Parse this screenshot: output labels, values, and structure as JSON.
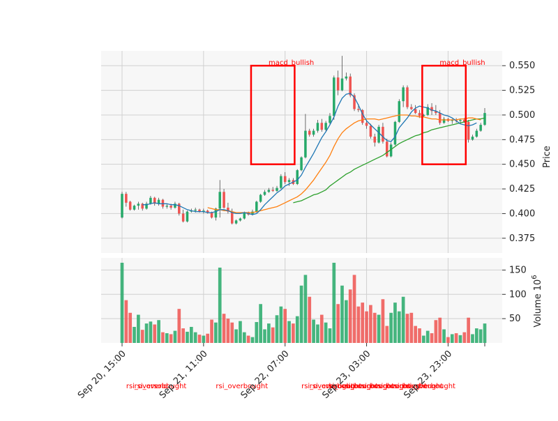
{
  "chart_data": {
    "type": "candlestick",
    "y_axis_label": "Price",
    "volume_axis_label": "Volume",
    "volume_axis_multiplier": "10",
    "volume_axis_multiplier_exp": "6",
    "price_range": [
      0.36,
      0.565
    ],
    "volume_range": [
      0,
      175
    ],
    "price_ticks": [
      "0.375",
      "0.400",
      "0.425",
      "0.450",
      "0.475",
      "0.500",
      "0.525",
      "0.550"
    ],
    "volume_ticks": [
      "50",
      "100",
      "150"
    ],
    "x_tick_labels": [
      "Sep 20, 15:00",
      "Sep 21, 11:00",
      "Sep 22, 07:00",
      "Sep 23, 03:00",
      "Sep 23, 23:00"
    ],
    "grid": true,
    "colors": {
      "up": "#26a969",
      "down": "#ef5350",
      "ma_short": "#1f77b4",
      "ma_mid": "#ff7f0e",
      "ma_long": "#2ca02c",
      "annotation": "#ff0000"
    },
    "candles": [
      {
        "o": 0.396,
        "h": 0.422,
        "l": 0.395,
        "c": 0.42,
        "v": 165
      },
      {
        "o": 0.42,
        "h": 0.422,
        "l": 0.407,
        "c": 0.411,
        "v": 88
      },
      {
        "o": 0.412,
        "h": 0.413,
        "l": 0.403,
        "c": 0.404,
        "v": 62
      },
      {
        "o": 0.404,
        "h": 0.409,
        "l": 0.403,
        "c": 0.408,
        "v": 33
      },
      {
        "o": 0.408,
        "h": 0.412,
        "l": 0.404,
        "c": 0.41,
        "v": 58
      },
      {
        "o": 0.41,
        "h": 0.411,
        "l": 0.403,
        "c": 0.405,
        "v": 27
      },
      {
        "o": 0.405,
        "h": 0.412,
        "l": 0.404,
        "c": 0.41,
        "v": 40
      },
      {
        "o": 0.41,
        "h": 0.418,
        "l": 0.409,
        "c": 0.416,
        "v": 44
      },
      {
        "o": 0.416,
        "h": 0.417,
        "l": 0.408,
        "c": 0.41,
        "v": 38
      },
      {
        "o": 0.41,
        "h": 0.416,
        "l": 0.408,
        "c": 0.414,
        "v": 47
      },
      {
        "o": 0.414,
        "h": 0.415,
        "l": 0.405,
        "c": 0.407,
        "v": 22
      },
      {
        "o": 0.407,
        "h": 0.41,
        "l": 0.405,
        "c": 0.408,
        "v": 20
      },
      {
        "o": 0.408,
        "h": 0.41,
        "l": 0.404,
        "c": 0.406,
        "v": 18
      },
      {
        "o": 0.406,
        "h": 0.412,
        "l": 0.405,
        "c": 0.41,
        "v": 25
      },
      {
        "o": 0.41,
        "h": 0.411,
        "l": 0.398,
        "c": 0.4,
        "v": 70
      },
      {
        "o": 0.4,
        "h": 0.404,
        "l": 0.391,
        "c": 0.392,
        "v": 30
      },
      {
        "o": 0.392,
        "h": 0.403,
        "l": 0.391,
        "c": 0.402,
        "v": 23
      },
      {
        "o": 0.402,
        "h": 0.405,
        "l": 0.401,
        "c": 0.403,
        "v": 33
      },
      {
        "o": 0.403,
        "h": 0.406,
        "l": 0.401,
        "c": 0.404,
        "v": 22
      },
      {
        "o": 0.404,
        "h": 0.405,
        "l": 0.401,
        "c": 0.402,
        "v": 17
      },
      {
        "o": 0.402,
        "h": 0.405,
        "l": 0.4,
        "c": 0.403,
        "v": 15
      },
      {
        "o": 0.403,
        "h": 0.404,
        "l": 0.4,
        "c": 0.401,
        "v": 19
      },
      {
        "o": 0.401,
        "h": 0.402,
        "l": 0.395,
        "c": 0.396,
        "v": 48
      },
      {
        "o": 0.396,
        "h": 0.406,
        "l": 0.393,
        "c": 0.405,
        "v": 42
      },
      {
        "o": 0.405,
        "h": 0.434,
        "l": 0.396,
        "c": 0.422,
        "v": 155
      },
      {
        "o": 0.422,
        "h": 0.425,
        "l": 0.405,
        "c": 0.406,
        "v": 60
      },
      {
        "o": 0.406,
        "h": 0.411,
        "l": 0.4,
        "c": 0.402,
        "v": 50
      },
      {
        "o": 0.402,
        "h": 0.405,
        "l": 0.389,
        "c": 0.39,
        "v": 42
      },
      {
        "o": 0.39,
        "h": 0.394,
        "l": 0.389,
        "c": 0.393,
        "v": 28
      },
      {
        "o": 0.393,
        "h": 0.396,
        "l": 0.392,
        "c": 0.395,
        "v": 45
      },
      {
        "o": 0.395,
        "h": 0.402,
        "l": 0.394,
        "c": 0.401,
        "v": 22
      },
      {
        "o": 0.401,
        "h": 0.402,
        "l": 0.398,
        "c": 0.399,
        "v": 15
      },
      {
        "o": 0.399,
        "h": 0.404,
        "l": 0.398,
        "c": 0.402,
        "v": 12
      },
      {
        "o": 0.402,
        "h": 0.413,
        "l": 0.401,
        "c": 0.412,
        "v": 43
      },
      {
        "o": 0.412,
        "h": 0.42,
        "l": 0.411,
        "c": 0.419,
        "v": 80
      },
      {
        "o": 0.419,
        "h": 0.424,
        "l": 0.418,
        "c": 0.422,
        "v": 28
      },
      {
        "o": 0.422,
        "h": 0.426,
        "l": 0.421,
        "c": 0.424,
        "v": 40
      },
      {
        "o": 0.424,
        "h": 0.427,
        "l": 0.422,
        "c": 0.423,
        "v": 32
      },
      {
        "o": 0.423,
        "h": 0.428,
        "l": 0.422,
        "c": 0.426,
        "v": 57
      },
      {
        "o": 0.426,
        "h": 0.44,
        "l": 0.425,
        "c": 0.438,
        "v": 75
      },
      {
        "o": 0.438,
        "h": 0.442,
        "l": 0.43,
        "c": 0.432,
        "v": 70
      },
      {
        "o": 0.432,
        "h": 0.436,
        "l": 0.428,
        "c": 0.434,
        "v": 45
      },
      {
        "o": 0.434,
        "h": 0.436,
        "l": 0.429,
        "c": 0.43,
        "v": 40
      },
      {
        "o": 0.43,
        "h": 0.445,
        "l": 0.429,
        "c": 0.444,
        "v": 55
      },
      {
        "o": 0.444,
        "h": 0.458,
        "l": 0.443,
        "c": 0.457,
        "v": 118
      },
      {
        "o": 0.457,
        "h": 0.501,
        "l": 0.456,
        "c": 0.484,
        "v": 140
      },
      {
        "o": 0.484,
        "h": 0.486,
        "l": 0.478,
        "c": 0.48,
        "v": 95
      },
      {
        "o": 0.48,
        "h": 0.486,
        "l": 0.478,
        "c": 0.484,
        "v": 48
      },
      {
        "o": 0.484,
        "h": 0.495,
        "l": 0.482,
        "c": 0.492,
        "v": 38
      },
      {
        "o": 0.492,
        "h": 0.496,
        "l": 0.483,
        "c": 0.485,
        "v": 58
      },
      {
        "o": 0.485,
        "h": 0.494,
        "l": 0.484,
        "c": 0.492,
        "v": 42
      },
      {
        "o": 0.492,
        "h": 0.502,
        "l": 0.49,
        "c": 0.499,
        "v": 30
      },
      {
        "o": 0.499,
        "h": 0.54,
        "l": 0.495,
        "c": 0.538,
        "v": 165
      },
      {
        "o": 0.538,
        "h": 0.545,
        "l": 0.52,
        "c": 0.525,
        "v": 80
      },
      {
        "o": 0.525,
        "h": 0.56,
        "l": 0.524,
        "c": 0.537,
        "v": 118
      },
      {
        "o": 0.537,
        "h": 0.543,
        "l": 0.535,
        "c": 0.539,
        "v": 88
      },
      {
        "o": 0.539,
        "h": 0.542,
        "l": 0.518,
        "c": 0.52,
        "v": 110
      },
      {
        "o": 0.52,
        "h": 0.522,
        "l": 0.504,
        "c": 0.506,
        "v": 140
      },
      {
        "o": 0.506,
        "h": 0.511,
        "l": 0.503,
        "c": 0.505,
        "v": 75
      },
      {
        "o": 0.505,
        "h": 0.506,
        "l": 0.49,
        "c": 0.492,
        "v": 83
      },
      {
        "o": 0.492,
        "h": 0.495,
        "l": 0.486,
        "c": 0.489,
        "v": 65
      },
      {
        "o": 0.489,
        "h": 0.491,
        "l": 0.476,
        "c": 0.478,
        "v": 78
      },
      {
        "o": 0.478,
        "h": 0.481,
        "l": 0.468,
        "c": 0.472,
        "v": 62
      },
      {
        "o": 0.472,
        "h": 0.49,
        "l": 0.471,
        "c": 0.488,
        "v": 58
      },
      {
        "o": 0.488,
        "h": 0.492,
        "l": 0.471,
        "c": 0.473,
        "v": 90
      },
      {
        "o": 0.473,
        "h": 0.476,
        "l": 0.457,
        "c": 0.458,
        "v": 35
      },
      {
        "o": 0.458,
        "h": 0.472,
        "l": 0.457,
        "c": 0.47,
        "v": 62
      },
      {
        "o": 0.47,
        "h": 0.494,
        "l": 0.469,
        "c": 0.493,
        "v": 83
      },
      {
        "o": 0.493,
        "h": 0.516,
        "l": 0.492,
        "c": 0.514,
        "v": 65
      },
      {
        "o": 0.514,
        "h": 0.53,
        "l": 0.508,
        "c": 0.528,
        "v": 95
      },
      {
        "o": 0.528,
        "h": 0.53,
        "l": 0.506,
        "c": 0.508,
        "v": 60
      },
      {
        "o": 0.508,
        "h": 0.511,
        "l": 0.505,
        "c": 0.506,
        "v": 62
      },
      {
        "o": 0.506,
        "h": 0.51,
        "l": 0.501,
        "c": 0.502,
        "v": 35
      },
      {
        "o": 0.502,
        "h": 0.505,
        "l": 0.497,
        "c": 0.499,
        "v": 30
      },
      {
        "o": 0.499,
        "h": 0.501,
        "l": 0.498,
        "c": 0.5,
        "v": 15
      },
      {
        "o": 0.5,
        "h": 0.511,
        "l": 0.499,
        "c": 0.508,
        "v": 25
      },
      {
        "o": 0.508,
        "h": 0.512,
        "l": 0.5,
        "c": 0.504,
        "v": 20
      },
      {
        "o": 0.504,
        "h": 0.51,
        "l": 0.5,
        "c": 0.502,
        "v": 47
      },
      {
        "o": 0.502,
        "h": 0.505,
        "l": 0.49,
        "c": 0.492,
        "v": 52
      },
      {
        "o": 0.492,
        "h": 0.498,
        "l": 0.491,
        "c": 0.496,
        "v": 28
      },
      {
        "o": 0.496,
        "h": 0.497,
        "l": 0.493,
        "c": 0.494,
        "v": 12
      },
      {
        "o": 0.494,
        "h": 0.496,
        "l": 0.491,
        "c": 0.495,
        "v": 18
      },
      {
        "o": 0.495,
        "h": 0.497,
        "l": 0.492,
        "c": 0.494,
        "v": 20
      },
      {
        "o": 0.494,
        "h": 0.496,
        "l": 0.491,
        "c": 0.495,
        "v": 16
      },
      {
        "o": 0.495,
        "h": 0.497,
        "l": 0.492,
        "c": 0.493,
        "v": 22
      },
      {
        "o": 0.493,
        "h": 0.495,
        "l": 0.472,
        "c": 0.475,
        "v": 52
      },
      {
        "o": 0.475,
        "h": 0.48,
        "l": 0.474,
        "c": 0.478,
        "v": 18
      },
      {
        "o": 0.478,
        "h": 0.486,
        "l": 0.477,
        "c": 0.484,
        "v": 30
      },
      {
        "o": 0.484,
        "h": 0.492,
        "l": 0.483,
        "c": 0.49,
        "v": 28
      },
      {
        "o": 0.49,
        "h": 0.507,
        "l": 0.489,
        "c": 0.502,
        "v": 40
      }
    ],
    "ma_short": [
      null,
      null,
      null,
      null,
      null,
      0.409,
      0.409,
      0.41,
      0.411,
      0.41,
      0.41,
      0.41,
      0.409,
      0.409,
      0.408,
      0.406,
      0.404,
      0.403,
      0.402,
      0.402,
      0.402,
      0.401,
      0.401,
      0.402,
      0.404,
      0.404,
      0.403,
      0.401,
      0.4,
      0.4,
      0.401,
      0.4,
      0.399,
      0.4,
      0.404,
      0.409,
      0.413,
      0.417,
      0.421,
      0.424,
      0.428,
      0.43,
      0.432,
      0.434,
      0.439,
      0.447,
      0.454,
      0.461,
      0.469,
      0.477,
      0.483,
      0.49,
      0.498,
      0.509,
      0.517,
      0.521,
      0.522,
      0.518,
      0.51,
      0.501,
      0.494,
      0.49,
      0.486,
      0.482,
      0.478,
      0.474,
      0.473,
      0.478,
      0.487,
      0.492,
      0.497,
      0.503,
      0.507,
      0.509,
      0.508,
      0.507,
      0.505,
      0.504,
      0.502,
      0.5,
      0.499,
      0.497,
      0.494,
      0.491,
      0.49,
      0.489,
      0.49,
      0.492
    ],
    "ma_mid": [
      null,
      null,
      null,
      null,
      null,
      null,
      null,
      null,
      null,
      null,
      null,
      null,
      null,
      null,
      null,
      null,
      null,
      null,
      null,
      null,
      null,
      0.406,
      0.405,
      0.404,
      0.404,
      0.403,
      0.403,
      0.402,
      0.401,
      0.401,
      0.401,
      0.401,
      0.401,
      0.402,
      0.403,
      0.404,
      0.405,
      0.406,
      0.407,
      0.409,
      0.411,
      0.413,
      0.415,
      0.417,
      0.42,
      0.424,
      0.429,
      0.434,
      0.44,
      0.446,
      0.452,
      0.459,
      0.468,
      0.476,
      0.482,
      0.486,
      0.489,
      0.492,
      0.494,
      0.495,
      0.496,
      0.496,
      0.496,
      0.495,
      0.496,
      0.497,
      0.498,
      0.499,
      0.5,
      0.5,
      0.5,
      0.499,
      0.499,
      0.498,
      0.498,
      0.497,
      0.496,
      0.496,
      0.495,
      0.495,
      0.495,
      0.495,
      0.495,
      0.496,
      0.496,
      0.497,
      0.497,
      0.496,
      0.495
    ],
    "ma_long": [
      null,
      null,
      null,
      null,
      null,
      null,
      null,
      null,
      null,
      null,
      null,
      null,
      null,
      null,
      null,
      null,
      null,
      null,
      null,
      null,
      null,
      null,
      null,
      null,
      null,
      null,
      null,
      null,
      null,
      null,
      null,
      null,
      null,
      null,
      null,
      null,
      null,
      null,
      null,
      null,
      null,
      null,
      0.411,
      0.412,
      0.413,
      0.415,
      0.417,
      0.419,
      0.42,
      0.422,
      0.424,
      0.428,
      0.431,
      0.434,
      0.437,
      0.44,
      0.442,
      0.445,
      0.447,
      0.449,
      0.451,
      0.453,
      0.455,
      0.457,
      0.459,
      0.462,
      0.465,
      0.468,
      0.471,
      0.473,
      0.475,
      0.477,
      0.479,
      0.48,
      0.482,
      0.483,
      0.485,
      0.486,
      0.487,
      0.488,
      0.489,
      0.49,
      0.491,
      0.492,
      0.493,
      0.494,
      0.495,
      0.496,
      0.496,
      0.497
    ],
    "annotation_boxes": [
      {
        "label": "macd_bullish",
        "start_index": 32,
        "end_index": 42,
        "price_low": 0.45,
        "price_high": 0.55
      },
      {
        "label": "macd_bullish",
        "start_index": 74,
        "end_index": 84,
        "price_low": 0.45,
        "price_high": 0.55
      }
    ],
    "bottom_labels": [
      {
        "label": "rsi_oversold",
        "index": 1
      },
      {
        "label": "rsi_overbought",
        "index": 3
      },
      {
        "label": "rsi_overbought",
        "index": 23
      },
      {
        "label": "rsi_overbought",
        "index": 44
      },
      {
        "label": "rsi_overbought",
        "index": 46
      },
      {
        "label": "rsi_overbought",
        "index": 50
      },
      {
        "label": "rsi_overbought",
        "index": 54
      },
      {
        "label": "rsi_overbought",
        "index": 58
      },
      {
        "label": "rsi_overbought",
        "index": 62
      },
      {
        "label": "rsi_overbought",
        "index": 66
      },
      {
        "label": "rsi_overbought",
        "index": 69
      }
    ],
    "x_tick_indices": [
      0,
      20,
      40,
      60,
      80
    ]
  }
}
